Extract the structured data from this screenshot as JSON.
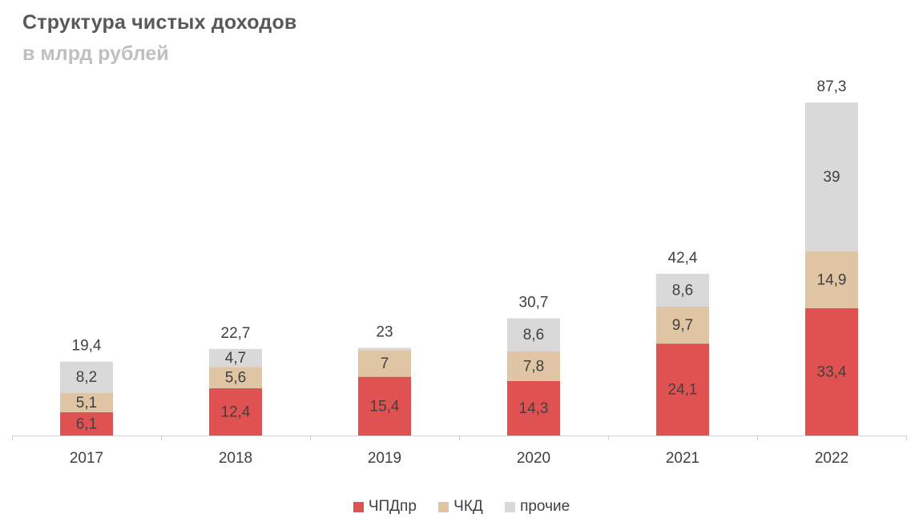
{
  "header": {
    "title": "Структура чистых доходов",
    "subtitle": "в млрд рублей"
  },
  "chart_data": {
    "type": "bar",
    "stacked": true,
    "title": "Структура чистых доходов",
    "subtitle": "в млрд рублей",
    "categories": [
      "2017",
      "2018",
      "2019",
      "2020",
      "2021",
      "2022"
    ],
    "series": [
      {
        "name": "ЧПДпр",
        "color": "#e05252",
        "values": [
          6.1,
          12.4,
          15.4,
          14.3,
          24.1,
          33.4
        ],
        "labels": [
          "6,1",
          "12,4",
          "15,4",
          "14,3",
          "24,1",
          "33,4"
        ]
      },
      {
        "name": "ЧКД",
        "color": "#dfc5a4",
        "values": [
          5.1,
          5.6,
          7,
          7.8,
          9.7,
          14.9
        ],
        "labels": [
          "5,1",
          "5,6",
          "7",
          "7,8",
          "9,7",
          "14,9"
        ]
      },
      {
        "name": "прочие",
        "color": "#d9d9d9",
        "values": [
          8.2,
          4.7,
          0.6,
          8.6,
          8.6,
          39
        ],
        "labels": [
          "8,2",
          "4,7",
          "",
          "8,6",
          "8,6",
          "39"
        ]
      }
    ],
    "totals": [
      19.4,
      22.7,
      23,
      30.7,
      42.4,
      87.3
    ],
    "total_labels": [
      "19,4",
      "22,7",
      "23",
      "30,7",
      "42,4",
      "87,3"
    ],
    "ylim": [
      0,
      87.3
    ],
    "grid": false,
    "legend": "bottom-center"
  }
}
